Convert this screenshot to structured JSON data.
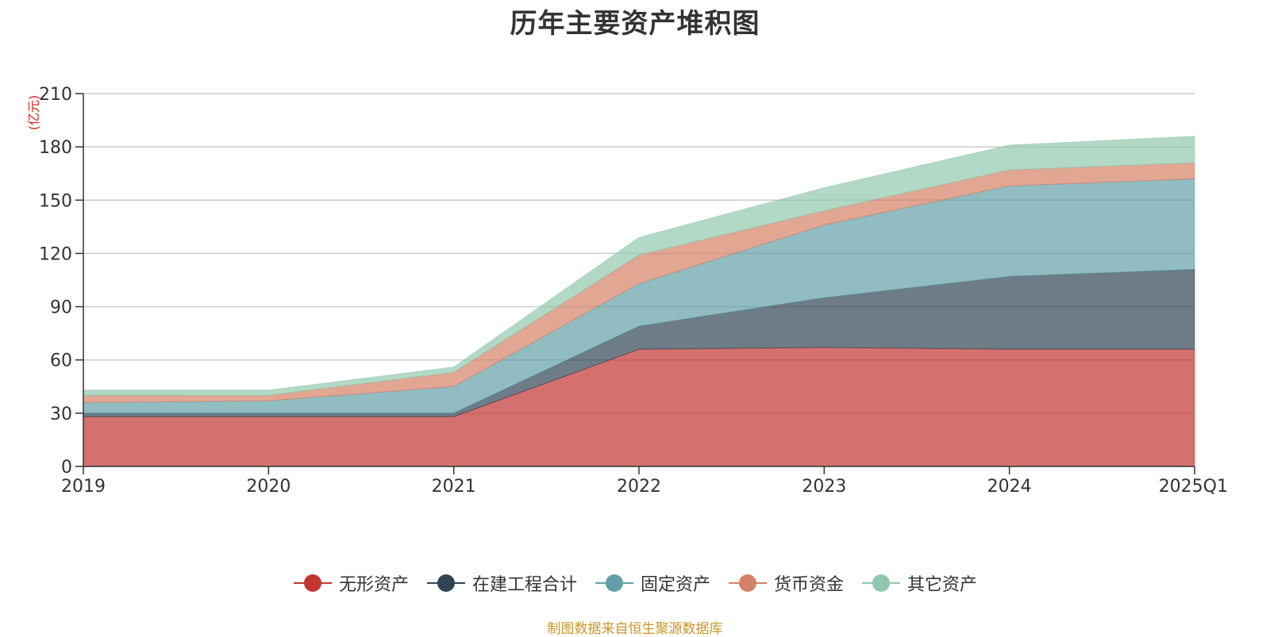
{
  "chart_data": {
    "type": "area",
    "stacked": true,
    "title": "历年主要资产堆积图",
    "ylabel": "(亿元)",
    "xlabel": "",
    "categories": [
      "2019",
      "2020",
      "2021",
      "2022",
      "2023",
      "2024",
      "2025Q1"
    ],
    "ylim": [
      0,
      210
    ],
    "yticks": [
      0,
      30,
      60,
      90,
      120,
      150,
      180,
      210
    ],
    "grid": true,
    "legend_position": "bottom",
    "series": [
      {
        "name": "无形资产",
        "color": "#c23531",
        "values": [
          28,
          28,
          28,
          66,
          67,
          66,
          66
        ]
      },
      {
        "name": "在建工程合计",
        "color": "#2f4554",
        "values": [
          2,
          2,
          2,
          13,
          28,
          41,
          45
        ]
      },
      {
        "name": "固定资产",
        "color": "#61a0a8",
        "values": [
          6,
          7,
          15,
          24,
          41,
          51,
          51
        ]
      },
      {
        "name": "货币资金",
        "color": "#d48265",
        "values": [
          4,
          3,
          8,
          16,
          8,
          9,
          9
        ]
      },
      {
        "name": "其它资产",
        "color": "#91c7ae",
        "values": [
          3,
          3,
          3,
          10,
          13,
          14,
          15
        ]
      }
    ]
  },
  "source_note": "制图数据来自恒生聚源数据库"
}
